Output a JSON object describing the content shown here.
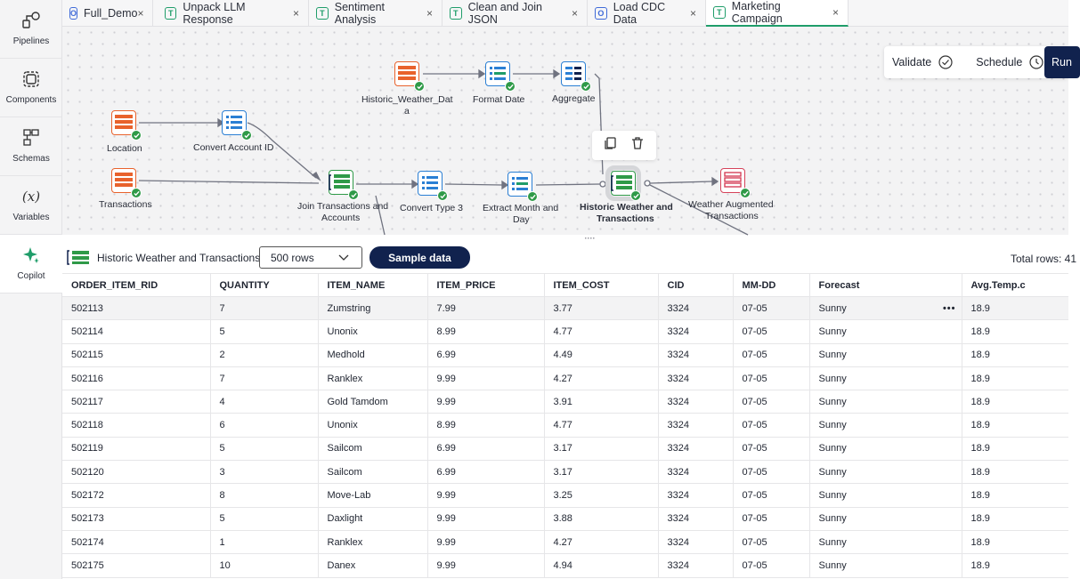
{
  "rail": [
    {
      "label": "Pipelines",
      "icon": "pipelines-icon"
    },
    {
      "label": "Components",
      "icon": "components-icon"
    },
    {
      "label": "Schemas",
      "icon": "schemas-icon"
    },
    {
      "label": "Variables",
      "icon": "variables-icon",
      "glyph": "(x)"
    },
    {
      "label": "Copilot",
      "icon": "copilot-icon"
    }
  ],
  "tabs": [
    {
      "label": "Full_Demo",
      "badge": "O",
      "close": "×"
    },
    {
      "label": "Unpack LLM Response",
      "badge": "T",
      "close": "×"
    },
    {
      "label": "Sentiment Analysis",
      "badge": "T",
      "close": "×"
    },
    {
      "label": "Clean and Join JSON",
      "badge": "T",
      "close": "×"
    },
    {
      "label": "Load CDC Data",
      "badge": "O",
      "close": "×"
    },
    {
      "label": "Marketing Campaign",
      "badge": "T",
      "close": "×",
      "active": true
    }
  ],
  "actions": {
    "validate": "Validate",
    "schedule": "Schedule",
    "run": "Run"
  },
  "nodes": {
    "location": "Location",
    "convert_account": "Convert Account ID",
    "transactions": "Transactions",
    "historic_weather_1": "Historic_Weather_Dat",
    "historic_weather_2": "a",
    "format_date": "Format Date",
    "aggregate": "Aggregate",
    "join_1": "Join Transactions and",
    "join_2": "Accounts",
    "convert_type": "Convert Type 3",
    "extract_1": "Extract Month and",
    "extract_2": "Day",
    "hwt_1": "Historic Weather and",
    "hwt_2": "Transactions",
    "wat_1": "Weather Augmented",
    "wat_2": "Transactions"
  },
  "data_panel": {
    "dataset": "Historic Weather and Transactions",
    "rows_select": "500 rows",
    "sample_button": "Sample data",
    "total_rows": "Total rows: 41"
  },
  "table": {
    "columns": [
      "ORDER_ITEM_RID",
      "QUANTITY",
      "ITEM_NAME",
      "ITEM_PRICE",
      "ITEM_COST",
      "CID",
      "MM-DD",
      "Forecast",
      "Avg.Temp.c"
    ],
    "row_menu": "•••",
    "rows": [
      [
        "502113",
        "7",
        "Zumstring",
        "7.99",
        "3.77",
        "3324",
        "07-05",
        "Sunny",
        "18.9"
      ],
      [
        "502114",
        "5",
        "Unonix",
        "8.99",
        "4.77",
        "3324",
        "07-05",
        "Sunny",
        "18.9"
      ],
      [
        "502115",
        "2",
        "Medhold",
        "6.99",
        "4.49",
        "3324",
        "07-05",
        "Sunny",
        "18.9"
      ],
      [
        "502116",
        "7",
        "Ranklex",
        "9.99",
        "4.27",
        "3324",
        "07-05",
        "Sunny",
        "18.9"
      ],
      [
        "502117",
        "4",
        "Gold Tamdom",
        "9.99",
        "3.91",
        "3324",
        "07-05",
        "Sunny",
        "18.9"
      ],
      [
        "502118",
        "6",
        "Unonix",
        "8.99",
        "4.77",
        "3324",
        "07-05",
        "Sunny",
        "18.9"
      ],
      [
        "502119",
        "5",
        "Sailcom",
        "6.99",
        "3.17",
        "3324",
        "07-05",
        "Sunny",
        "18.9"
      ],
      [
        "502120",
        "3",
        "Sailcom",
        "6.99",
        "3.17",
        "3324",
        "07-05",
        "Sunny",
        "18.9"
      ],
      [
        "502172",
        "8",
        "Move-Lab",
        "9.99",
        "3.25",
        "3324",
        "07-05",
        "Sunny",
        "18.9"
      ],
      [
        "502173",
        "5",
        "Daxlight",
        "9.99",
        "3.88",
        "3324",
        "07-05",
        "Sunny",
        "18.9"
      ],
      [
        "502174",
        "1",
        "Ranklex",
        "9.99",
        "4.27",
        "3324",
        "07-05",
        "Sunny",
        "18.9"
      ],
      [
        "502175",
        "10",
        "Danex",
        "9.99",
        "4.94",
        "3324",
        "07-05",
        "Sunny",
        "18.9"
      ]
    ]
  },
  "colors": {
    "accent": "#1f9d6a",
    "navy": "#11224e",
    "source": "#e8622c",
    "transform": "#2a7fd4",
    "check": "#2f9a48",
    "target": "#d6425a"
  }
}
